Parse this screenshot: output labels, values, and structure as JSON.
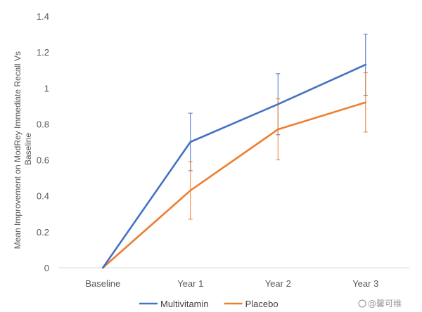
{
  "chart_data": {
    "type": "line",
    "categories": [
      "Baseline",
      "Year 1",
      "Year 2",
      "Year 3"
    ],
    "series": [
      {
        "name": "Multivitamin",
        "color": "#4472C4",
        "values": [
          0,
          0.7,
          0.91,
          1.13
        ],
        "error": [
          0,
          0.16,
          0.17,
          0.17
        ]
      },
      {
        "name": "Placebo",
        "color": "#ED7D31",
        "values": [
          0,
          0.43,
          0.77,
          0.92
        ],
        "error": [
          0,
          0.16,
          0.17,
          0.165
        ]
      }
    ],
    "ylabel": "Mean Improvement on ModRey Immediate Recall Vs Baseline",
    "ylabel_lines": [
      "Mean Improvement on ModRey Immediate Recall Vs",
      "Baseline"
    ],
    "ylim": [
      0,
      1.4
    ],
    "yticks": [
      0,
      0.2,
      0.4,
      0.6,
      0.8,
      1,
      1.2,
      1.4
    ],
    "ytick_labels": [
      "0",
      "0.2",
      "0.4",
      "0.6",
      "0.8",
      "1",
      "1.2",
      "1.4"
    ],
    "grid": false,
    "legend_position": "bottom"
  },
  "watermark": {
    "text": "@馨可维"
  }
}
